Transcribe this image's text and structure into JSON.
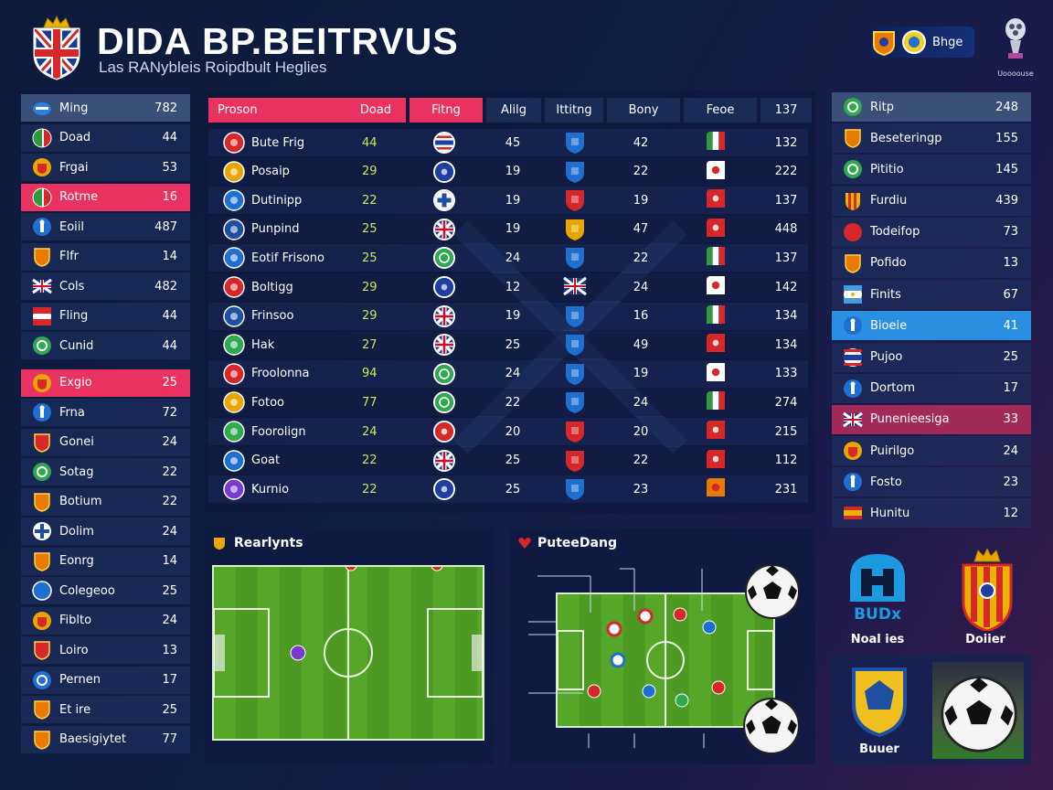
{
  "header": {
    "title": "DIDA BP.BEITRVUS",
    "subtitle": "Las RANybleis Roipdbult Heglies",
    "brand_label": "Bhge",
    "cup_label": "Uoooouse"
  },
  "left_list": [
    {
      "name": "Ming",
      "value": "782",
      "style": "top",
      "icon": "cap-icon",
      "color": "#2a7fe0"
    },
    {
      "name": "Doad",
      "value": "44",
      "icon": "italy-flag-icon",
      "color": "#2e9a3e"
    },
    {
      "name": "Frgai",
      "value": "53",
      "icon": "crest-icon",
      "color": "#e8a600"
    },
    {
      "name": "Rotme",
      "value": "16",
      "style": "hl",
      "icon": "italy-flag-icon",
      "color": "#2e9a3e"
    },
    {
      "name": "Eoiil",
      "value": "487",
      "icon": "player-icon",
      "color": "#1e6fd0"
    },
    {
      "name": "Flfr",
      "value": "14",
      "icon": "shield-icon",
      "color": "#e87a00"
    },
    {
      "name": "Cols",
      "value": "482",
      "icon": "union-jack-icon",
      "color": "#c8102e"
    },
    {
      "name": "Fling",
      "value": "44",
      "icon": "flag-icon",
      "color": "#d62828"
    },
    {
      "name": "Cunid",
      "value": "44",
      "icon": "wreath-icon",
      "color": "#2fa84f"
    },
    {
      "name": "Exgio",
      "value": "25",
      "style": "hl",
      "icon": "crest-icon",
      "color": "#e8a600"
    },
    {
      "name": "Frna",
      "value": "72",
      "icon": "player-icon",
      "color": "#1e6fd0"
    },
    {
      "name": "Gonei",
      "value": "24",
      "icon": "shield-icon",
      "color": "#d62828"
    },
    {
      "name": "Sotag",
      "value": "22",
      "icon": "leaf-icon",
      "color": "#2fa84f"
    },
    {
      "name": "Botium",
      "value": "22",
      "icon": "shield-icon",
      "color": "#e87a00"
    },
    {
      "name": "Dolim",
      "value": "24",
      "icon": "cross-icon",
      "color": "#1e4fa0"
    },
    {
      "name": "Eonrg",
      "value": "14",
      "icon": "shield-icon",
      "color": "#e87a00"
    },
    {
      "name": "Colegeoo",
      "value": "25",
      "icon": "badge-icon",
      "color": "#1e6fd0"
    },
    {
      "name": "Fiblto",
      "value": "24",
      "icon": "crest-icon",
      "color": "#e8a600"
    },
    {
      "name": "Loiro",
      "value": "13",
      "icon": "shield-icon",
      "color": "#d62828"
    },
    {
      "name": "Pernen",
      "value": "17",
      "icon": "wreath-icon",
      "color": "#1e6fd0"
    },
    {
      "name": "Et ire",
      "value": "25",
      "icon": "shield-icon",
      "color": "#e87a00"
    },
    {
      "name": "Baesigiytet",
      "value": "77",
      "icon": "shield-icon",
      "color": "#e87a00"
    }
  ],
  "table": {
    "headers": [
      "Proson",
      "Doad",
      "Fitng",
      "Alilg",
      "Ittitng",
      "Bony",
      "Feoe",
      "137"
    ],
    "rows": [
      {
        "team": "Bute Frig",
        "a": "44",
        "b": "45",
        "c": "42",
        "d": "132",
        "c1": "#d62828",
        "f1": "thai",
        "f2": "#1e6fd0",
        "f3": "italy"
      },
      {
        "team": "Posaip",
        "a": "29",
        "b": "19",
        "c": "22",
        "d": "222",
        "c1": "#e8a600",
        "f1": "dark",
        "f2": "#1e6fd0",
        "f3": "white"
      },
      {
        "team": "Dutinipp",
        "a": "22",
        "b": "19",
        "c": "19",
        "d": "137",
        "c1": "#1e6fd0",
        "f1": "cross",
        "f2": "#d62828",
        "f3": "red"
      },
      {
        "team": "Punpind",
        "a": "25",
        "b": "19",
        "c": "47",
        "d": "448",
        "c1": "#1e4fa0",
        "f1": "uk",
        "f2": "#e8a600",
        "f3": "red"
      },
      {
        "team": "Eotif Frisono",
        "a": "25",
        "b": "24",
        "c": "22",
        "d": "137",
        "c1": "#1e6fd0",
        "f1": "green",
        "f2": "#1e6fd0",
        "f3": "italy"
      },
      {
        "team": "Boltigg",
        "a": "29",
        "b": "12",
        "c": "24",
        "d": "142",
        "c1": "#d62828",
        "f1": "dark",
        "f2": "uk",
        "f3": "white"
      },
      {
        "team": "Frinsoo",
        "a": "29",
        "b": "19",
        "c": "16",
        "d": "134",
        "c1": "#1e4fa0",
        "f1": "uk",
        "f2": "#1e6fd0",
        "f3": "italy"
      },
      {
        "team": "Hak",
        "a": "27",
        "b": "25",
        "c": "49",
        "d": "134",
        "c1": "#2fa84f",
        "f1": "uk",
        "f2": "#1e6fd0",
        "f3": "red"
      },
      {
        "team": "Froolonna",
        "a": "94",
        "b": "24",
        "c": "19",
        "d": "133",
        "c1": "#d62828",
        "f1": "green",
        "f2": "#1e6fd0",
        "f3": "white"
      },
      {
        "team": "Fotoo",
        "a": "77",
        "b": "22",
        "c": "24",
        "d": "274",
        "c1": "#e8a600",
        "f1": "green",
        "f2": "#1e6fd0",
        "f3": "italy"
      },
      {
        "team": "Foorolign",
        "a": "24",
        "b": "20",
        "c": "20",
        "d": "215",
        "c1": "#2fa84f",
        "f1": "red",
        "f2": "#d62828",
        "f3": "red"
      },
      {
        "team": "Goat",
        "a": "22",
        "b": "25",
        "c": "22",
        "d": "112",
        "c1": "#1e6fd0",
        "f1": "uk",
        "f2": "#d62828",
        "f3": "red"
      },
      {
        "team": "Kurnio",
        "a": "22",
        "b": "25",
        "c": "23",
        "d": "231",
        "c1": "#7a3ad0",
        "f1": "dark",
        "f2": "#1e6fd0",
        "f3": "orange"
      }
    ]
  },
  "right_list": [
    {
      "name": "Ritp",
      "value": "248",
      "style": "top",
      "icon": "wreath-icon",
      "color": "#2fa84f"
    },
    {
      "name": "Beseteringp",
      "value": "155",
      "icon": "shield-icon",
      "color": "#e87a00"
    },
    {
      "name": "Pititio",
      "value": "145",
      "icon": "wreath-icon",
      "color": "#2fa84f"
    },
    {
      "name": "Furdiu",
      "value": "439",
      "icon": "stripes-icon",
      "color": "#e87a00"
    },
    {
      "name": "Todeifop",
      "value": "73",
      "icon": "crest-icon",
      "color": "#d62828"
    },
    {
      "name": "Pofido",
      "value": "13",
      "icon": "shield-icon",
      "color": "#e87a00"
    },
    {
      "name": "Finits",
      "value": "67",
      "icon": "argentina-icon",
      "color": "#4a9ae0"
    },
    {
      "name": "Bioeie",
      "value": "41",
      "style": "hlb",
      "icon": "player-icon",
      "color": "#1e6fd0"
    },
    {
      "name": "Pujoo",
      "value": "25",
      "icon": "thai-flag-icon",
      "color": "#d62828"
    },
    {
      "name": "Dortom",
      "value": "17",
      "icon": "player-icon",
      "color": "#1e6fd0"
    },
    {
      "name": "Punenieesiga",
      "value": "33",
      "style": "hlm",
      "icon": "union-jack-icon",
      "color": "#c8102e"
    },
    {
      "name": "Puirilgo",
      "value": "24",
      "icon": "crest-icon",
      "color": "#e8a600"
    },
    {
      "name": "Fosto",
      "value": "23",
      "icon": "player-icon",
      "color": "#1e6fd0"
    },
    {
      "name": "Hunitu",
      "value": "12",
      "icon": "spain-flag-icon",
      "color": "#e8a600"
    }
  ],
  "panels": {
    "left_title": "Rearlynts",
    "right_title": "PuteeDang"
  },
  "cards": {
    "card1": "Noal ies",
    "card1_logo": "BUDx",
    "card2": "Doiier",
    "card3": "Buuer"
  },
  "colors": {
    "accent": "#e9325f",
    "blue": "#2a8fe0",
    "bg": "#0d1a3c"
  }
}
